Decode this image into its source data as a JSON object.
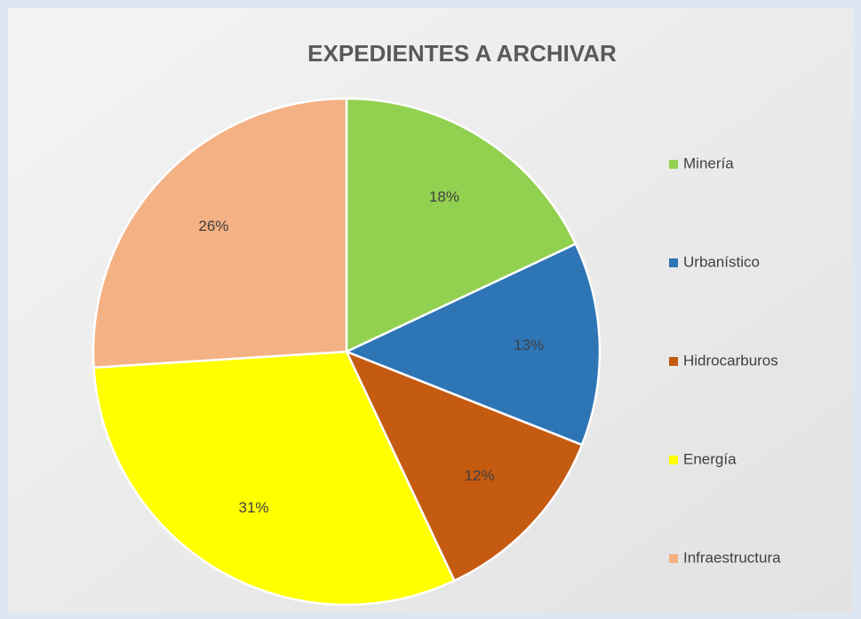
{
  "chart_data": {
    "type": "pie",
    "title": "EXPEDIENTES A ARCHIVAR",
    "categories": [
      "Minería",
      "Urbanístico",
      "Hidrocarburos",
      "Energía",
      "Infraestructura"
    ],
    "values": [
      18,
      13,
      12,
      31,
      26
    ],
    "value_labels": [
      "18%",
      "13%",
      "12%",
      "31%",
      "26%"
    ],
    "colors": [
      "#92d050",
      "#2e75b6",
      "#c55a11",
      "#ffff00",
      "#f4b183"
    ],
    "legend": "right"
  }
}
